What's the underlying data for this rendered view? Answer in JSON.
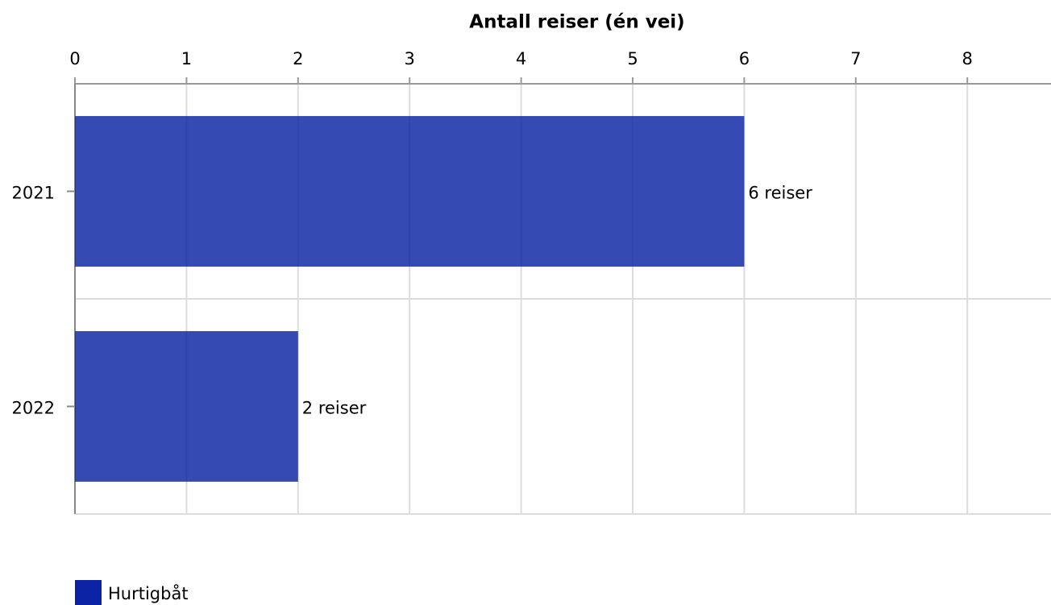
{
  "chart_data": {
    "type": "hbar",
    "x_label": "Antall reiser (én vei)",
    "categories": [
      "2021",
      "2022"
    ],
    "series": [
      {
        "name": "Hurtigbåt",
        "color": "#0a22a3",
        "values": [
          6,
          2
        ],
        "value_labels": [
          "6 reiser",
          "2 reiser"
        ]
      }
    ],
    "xlim": [
      0,
      8.75
    ],
    "xticks": [
      0,
      1,
      2,
      3,
      4,
      5,
      6,
      7,
      8
    ],
    "grid": true
  }
}
